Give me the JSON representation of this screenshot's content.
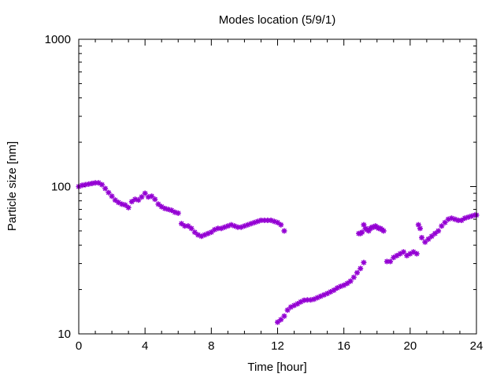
{
  "chart_data": {
    "type": "scatter",
    "title": "Modes location (5/9/1)",
    "xlabel": "Time [hour]",
    "ylabel": "Particle size [nm]",
    "xlim": [
      0,
      24
    ],
    "ylim": [
      10,
      1000
    ],
    "yscale": "log",
    "grid": false,
    "legend": "none",
    "x_ticks": [
      0,
      4,
      8,
      12,
      16,
      20,
      24
    ],
    "x_tick_labels": [
      "0",
      "4",
      "8",
      "12",
      "16",
      "20",
      "24"
    ],
    "y_ticks": [
      10,
      100,
      1000
    ],
    "y_tick_labels": [
      "10",
      "100",
      "1000"
    ],
    "marker_color": "#9400d3",
    "series": [
      {
        "x": [
          0.0,
          0.2,
          0.4,
          0.6,
          0.8,
          1.0,
          1.2,
          1.4,
          1.6,
          1.8,
          2.0,
          2.2,
          2.4,
          2.6,
          2.8,
          3.0,
          3.2,
          3.4,
          3.6,
          3.8,
          4.0,
          4.2,
          4.4,
          4.6,
          4.8,
          5.0,
          5.2,
          5.4,
          5.6,
          5.8,
          6.0,
          6.2,
          6.4,
          6.6,
          6.8,
          7.0,
          7.2,
          7.4,
          7.6,
          7.8,
          8.0,
          8.2,
          8.4,
          8.6,
          8.8,
          9.0,
          9.2,
          9.4,
          9.6,
          9.8,
          10.0,
          10.2,
          10.4,
          10.6,
          10.8,
          11.0,
          11.2,
          11.4,
          11.6,
          11.8,
          12.0,
          12.2,
          12.4
        ],
        "y": [
          100,
          102,
          103,
          104,
          105,
          106,
          106,
          103,
          97,
          91,
          86,
          81,
          78,
          76,
          75,
          72,
          79,
          82,
          81,
          85,
          90,
          85,
          86,
          82,
          76,
          73,
          71,
          70,
          69,
          67,
          66,
          56,
          54,
          54,
          52,
          49,
          47,
          46,
          47,
          48,
          49,
          51,
          52,
          52,
          53,
          54,
          55,
          54,
          53,
          53,
          54,
          55,
          56,
          57,
          58,
          59,
          59,
          59,
          59,
          58,
          57,
          55,
          50
        ]
      },
      {
        "x": [
          12.0,
          12.2,
          12.4,
          12.6,
          12.8,
          13.0,
          13.2,
          13.4,
          13.6,
          13.8,
          14.0,
          14.2,
          14.4,
          14.6,
          14.8,
          15.0,
          15.2,
          15.4,
          15.6,
          15.8,
          16.0,
          16.2,
          16.4,
          16.6,
          16.8,
          17.0,
          17.2
        ],
        "y": [
          12.0,
          12.5,
          13.2,
          14.5,
          15.2,
          15.6,
          16.0,
          16.5,
          16.9,
          17.0,
          17.0,
          17.2,
          17.6,
          18.0,
          18.4,
          18.8,
          19.3,
          19.8,
          20.5,
          21.0,
          21.4,
          22.0,
          22.8,
          24.2,
          26.0,
          27.8,
          30.5
        ]
      },
      {
        "x": [
          16.9,
          17.0,
          17.1,
          17.2,
          17.3,
          17.4,
          17.5,
          17.6,
          17.7,
          17.8,
          17.9,
          18.0,
          18.1,
          18.2,
          18.3,
          18.4
        ],
        "y": [
          48,
          48,
          49,
          55,
          52,
          51,
          50,
          52,
          53,
          53,
          54,
          53,
          52,
          52,
          51,
          50
        ]
      },
      {
        "x": [
          18.6,
          18.8,
          19.0,
          19.2,
          19.4,
          19.6,
          19.8,
          20.0,
          20.2,
          20.4
        ],
        "y": [
          31,
          31,
          33,
          34,
          35,
          36,
          34,
          35,
          36,
          35
        ]
      },
      {
        "x": [
          20.5,
          20.6,
          20.7,
          20.9,
          21.1,
          21.3,
          21.5,
          21.7,
          21.9,
          22.1,
          22.3,
          22.5,
          22.7,
          22.9,
          23.1,
          23.3,
          23.5,
          23.7,
          23.9,
          24.0
        ],
        "y": [
          55,
          52,
          45,
          42,
          44,
          46,
          48,
          50,
          54,
          57,
          60,
          61,
          60,
          59,
          59,
          61,
          62,
          63,
          64,
          64
        ]
      }
    ]
  }
}
